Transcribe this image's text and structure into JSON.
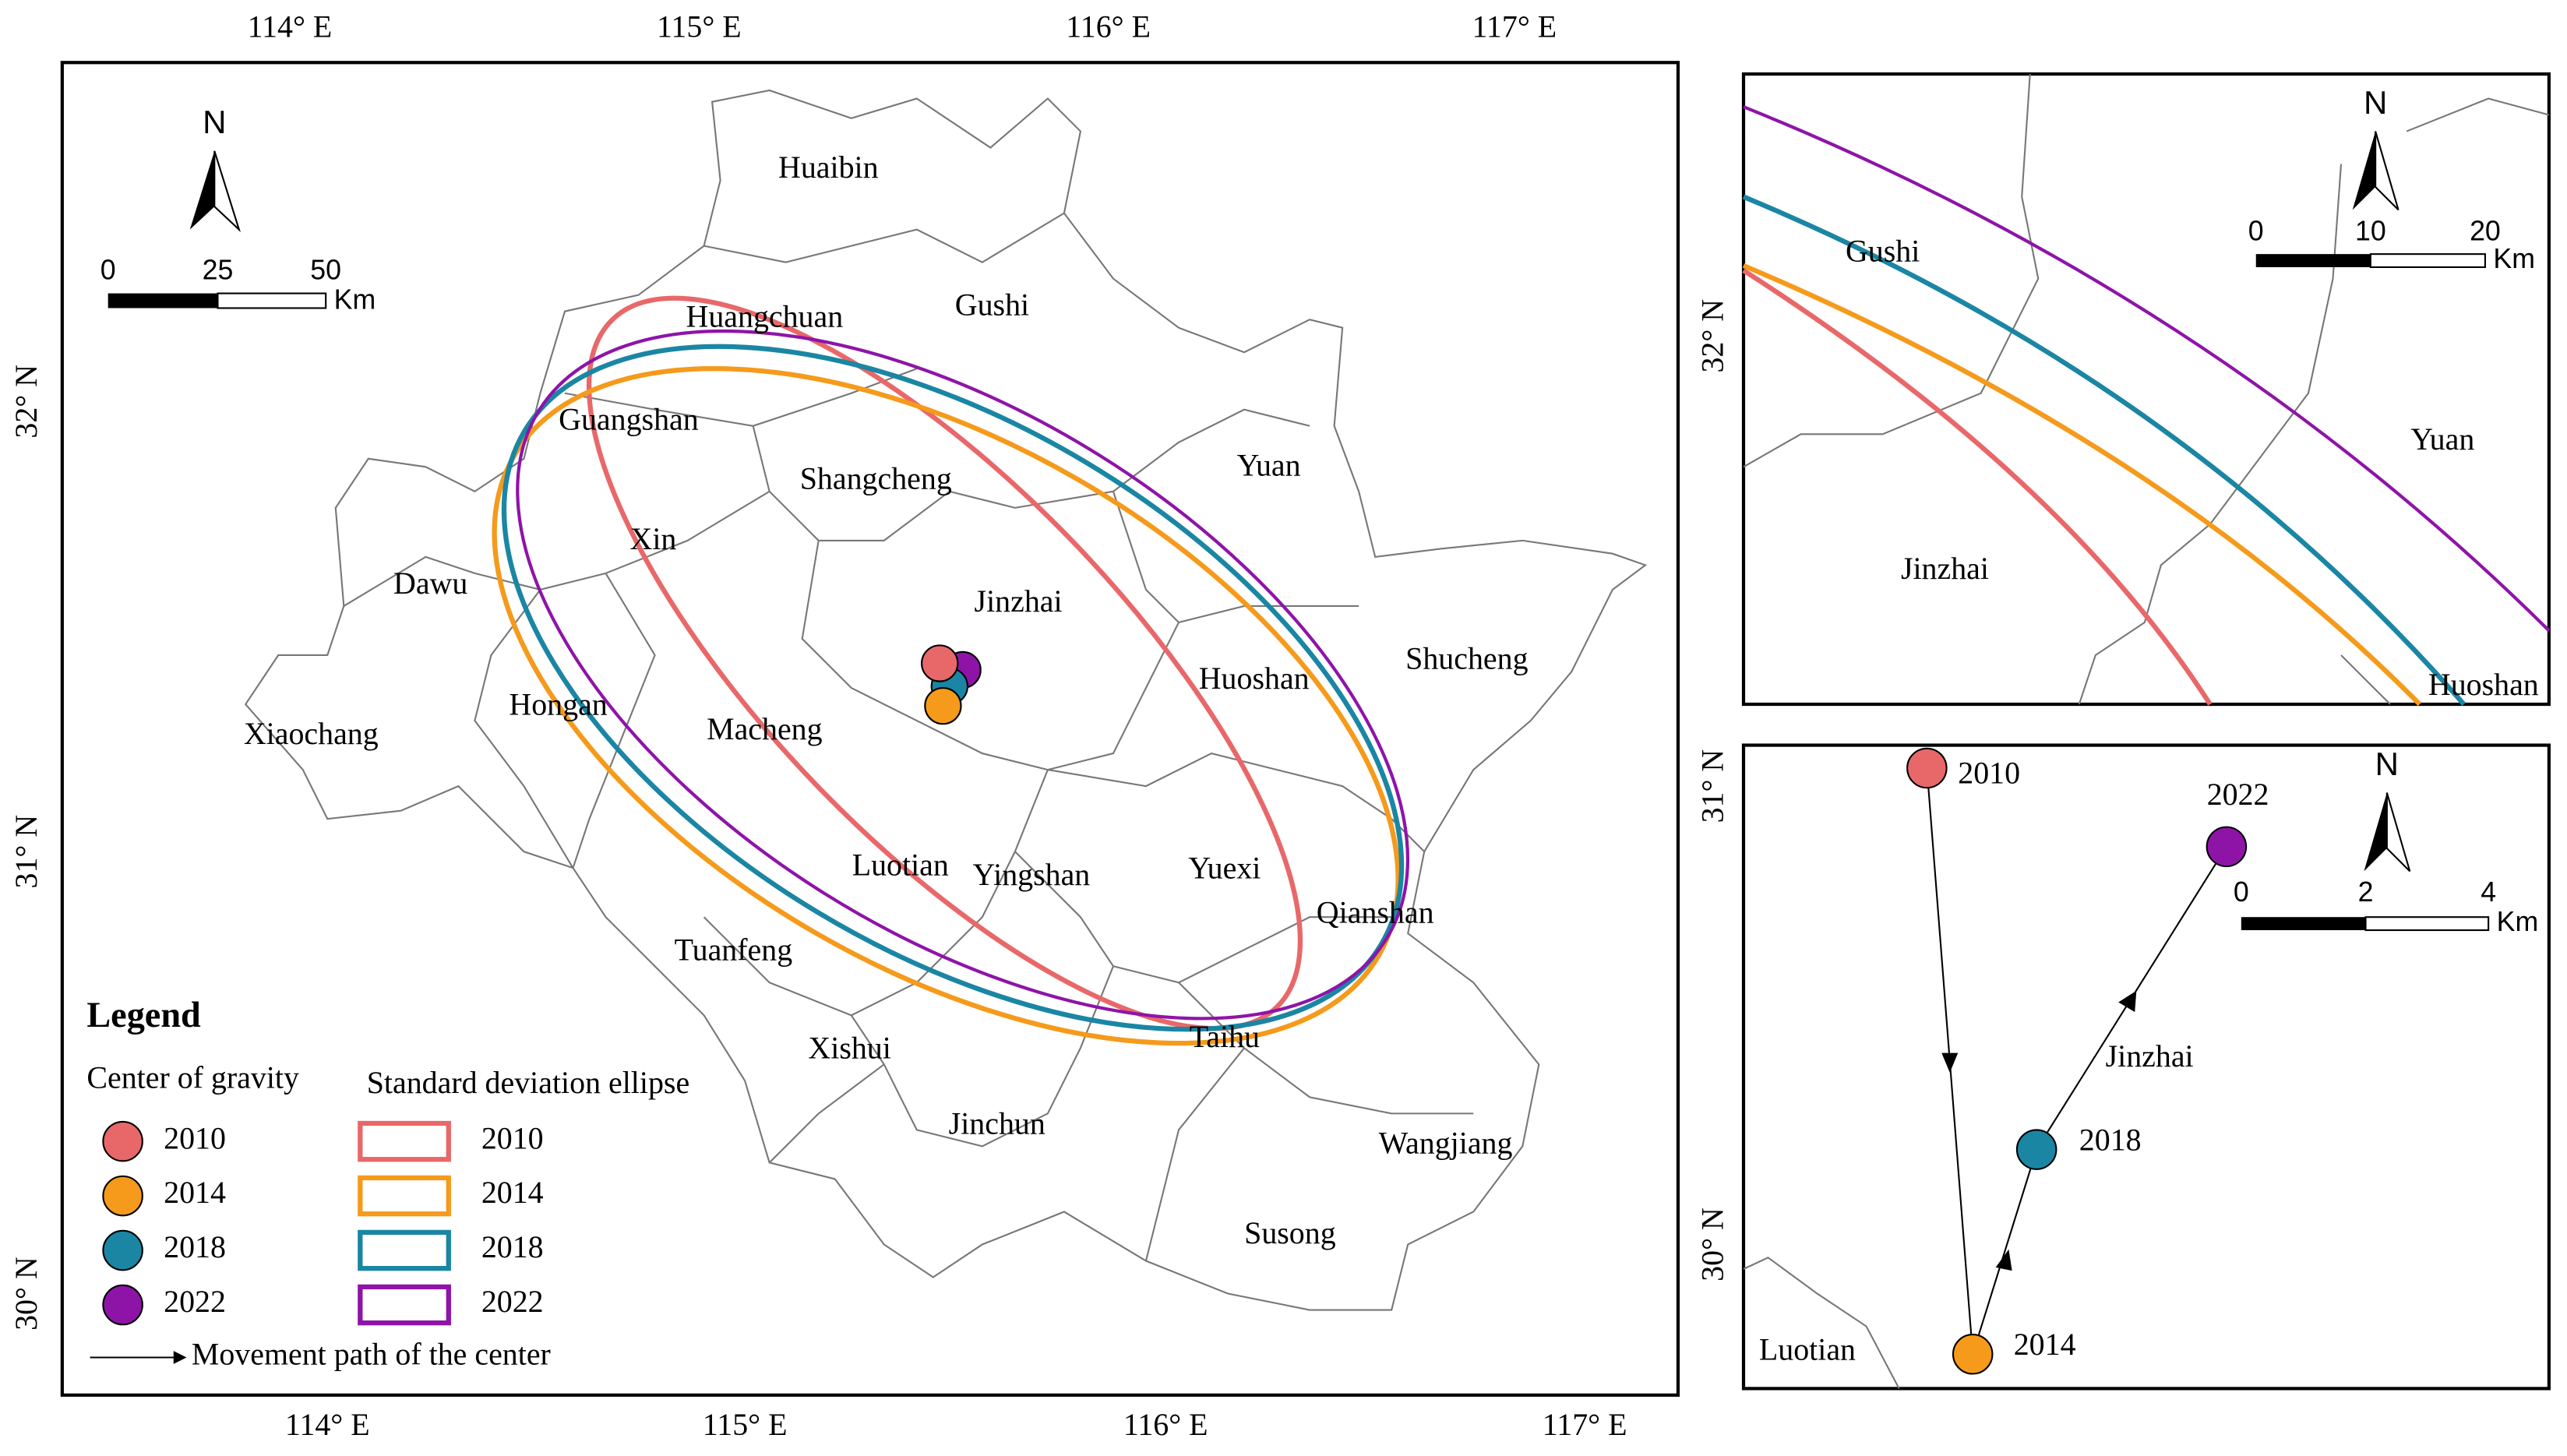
{
  "main_map": {
    "top_lon_labels": [
      "114° E",
      "115° E",
      "116° E",
      "117° E"
    ],
    "bottom_lon_labels": [
      "114° E",
      "115° E",
      "116° E",
      "117° E"
    ],
    "lat_labels": [
      "32° N",
      "31° N",
      "30° N"
    ],
    "north": "N",
    "scale_labels": [
      "0",
      "25",
      "50"
    ],
    "scale_unit": "Km",
    "places": [
      "Huaibin",
      "Gushi",
      "Huangchuan",
      "Guangshan",
      "Shangcheng",
      "Yuan",
      "Xin",
      "Dawu",
      "Jinzhai",
      "Shucheng",
      "Huoshan",
      "Hongan",
      "Macheng",
      "Xiaochang",
      "Luotian",
      "Yingshan",
      "Yuexi",
      "Qianshan",
      "Tuanfeng",
      "Xishui",
      "Taihu",
      "Jinchun",
      "Wangjiang",
      "Susong"
    ]
  },
  "legend": {
    "title": "Legend",
    "center_heading": "Center of gravity",
    "ellipse_heading": "Standard deviation ellipse",
    "centers": [
      {
        "year": "2010",
        "color": "#e8686a"
      },
      {
        "year": "2014",
        "color": "#f59a1b"
      },
      {
        "year": "2018",
        "color": "#1a86a3"
      },
      {
        "year": "2022",
        "color": "#8e14a8"
      }
    ],
    "ellipses": [
      {
        "year": "2010",
        "color": "#e8686a"
      },
      {
        "year": "2014",
        "color": "#f59a1b"
      },
      {
        "year": "2018",
        "color": "#1a86a3"
      },
      {
        "year": "2022",
        "color": "#8e14a8"
      }
    ],
    "path_label": "Movement path of the center"
  },
  "inset_ellipse": {
    "lat_label": "32° N",
    "north": "N",
    "scale_labels": [
      "0",
      "10",
      "20"
    ],
    "scale_unit": "Km",
    "places": [
      "Gushi",
      "Yuan",
      "Jinzhai",
      "Huoshan"
    ]
  },
  "inset_path": {
    "lat_labels": [
      "31° N",
      "30° N"
    ],
    "north": "N",
    "scale_labels": [
      "0",
      "2",
      "4"
    ],
    "scale_unit": "Km",
    "places": [
      "Jinzhai",
      "Luotian"
    ],
    "points": [
      "2010",
      "2022",
      "2018",
      "2014"
    ]
  }
}
